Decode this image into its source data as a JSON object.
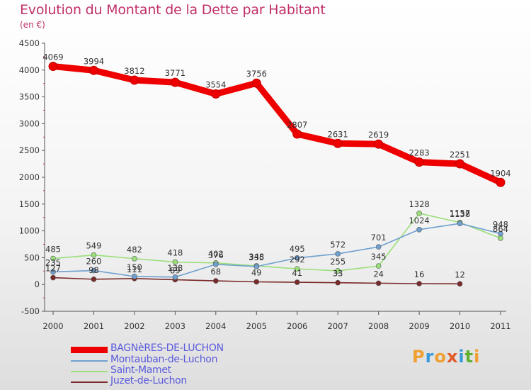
{
  "title": "Evolution du Montant de la Dette par Habitant",
  "unit": "(en €)",
  "logo": {
    "text": "Proxiti",
    "colors": [
      "#f0a030",
      "#3a9ad9",
      "#f0a030",
      "#e05a2a",
      "#3a9ad9",
      "#60b030",
      "#f0a030"
    ]
  },
  "chart_data": {
    "type": "line",
    "x": [
      "2000",
      "2001",
      "2002",
      "2003",
      "2004",
      "2005",
      "2006",
      "2007",
      "2008",
      "2009",
      "2010",
      "2011"
    ],
    "ylim": [
      -500,
      4500
    ],
    "yticks": [
      "-500",
      "0",
      "500",
      "1000",
      "1500",
      "2000",
      "2500",
      "3000",
      "3500",
      "4000",
      "4500"
    ],
    "grid": false,
    "legend_position": "bottom-left",
    "series": [
      {
        "name": "BAGNèRES-DE-LUCHON",
        "color": "#ee0000",
        "values": [
          4069,
          3994,
          3812,
          3771,
          3554,
          3756,
          2807,
          2631,
          2619,
          2283,
          2251,
          1904
        ],
        "labels": [
          "4069",
          "3994",
          "3812",
          "3771",
          "3554",
          "3756",
          "2807",
          "2631",
          "2619",
          "2283",
          "2251",
          "1904"
        ]
      },
      {
        "name": "Montauban-de-Luchon",
        "color": "#6fa0cf",
        "values": [
          235,
          260,
          150,
          138,
          376,
          335,
          495,
          572,
          701,
          1024,
          1138,
          948
        ],
        "labels": [
          "235",
          "260",
          "150",
          "138",
          "376",
          "335",
          "495",
          "572",
          "701",
          "1024",
          "1138",
          "948"
        ]
      },
      {
        "name": "Saint-Mamet",
        "color": "#9adf7a",
        "values": [
          485,
          549,
          482,
          418,
          402,
          348,
          292,
          255,
          345,
          1328,
          1157,
          864
        ],
        "labels": [
          "485",
          "549",
          "482",
          "418",
          "402",
          "348",
          "292",
          "255",
          "345",
          "1328",
          "1157",
          "864"
        ]
      },
      {
        "name": "Juzet-de-Luchon",
        "color": "#7a2a2a",
        "values": [
          127,
          98,
          111,
          89,
          68,
          49,
          41,
          33,
          24,
          16,
          12,
          null
        ],
        "labels": [
          "127",
          "98",
          "111",
          "89",
          "68",
          "49",
          "41",
          "33",
          "24",
          "16",
          "12",
          ""
        ]
      }
    ]
  }
}
